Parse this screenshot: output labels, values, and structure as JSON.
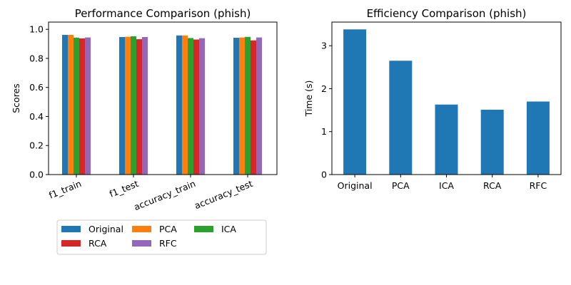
{
  "chart_data": [
    {
      "type": "bar",
      "title": "Performance Comparison (phish)",
      "xlabel": "",
      "ylabel": "Scores",
      "ylim": [
        0,
        1.0
      ],
      "yticks": [
        "0.0",
        "0.2",
        "0.4",
        "0.6",
        "0.8",
        "1.0"
      ],
      "yticks_values": [
        0,
        0.2,
        0.4,
        0.6,
        0.8,
        1.0
      ],
      "categories": [
        "f1_train",
        "f1_test",
        "accuracy_train",
        "accuracy_test"
      ],
      "series": [
        {
          "name": "Original",
          "color": "#1f77b4",
          "values": [
            0.962,
            0.947,
            0.958,
            0.942
          ]
        },
        {
          "name": "PCA",
          "color": "#ff7f0e",
          "values": [
            0.962,
            0.949,
            0.958,
            0.944
          ]
        },
        {
          "name": "ICA",
          "color": "#2ca02c",
          "values": [
            0.943,
            0.952,
            0.94,
            0.948
          ]
        },
        {
          "name": "RCA",
          "color": "#d62728",
          "values": [
            0.938,
            0.932,
            0.93,
            0.924
          ]
        },
        {
          "name": "RFC",
          "color": "#9467bd",
          "values": [
            0.944,
            0.947,
            0.939,
            0.944
          ]
        }
      ],
      "legend": {
        "placement": "below",
        "columns": 3
      },
      "grid": false
    },
    {
      "type": "bar",
      "title": "Efficiency Comparison (phish)",
      "xlabel": "",
      "ylabel": "Time (s)",
      "ylim": [
        0,
        3.55
      ],
      "yticks": [
        "0",
        "1",
        "2",
        "3"
      ],
      "yticks_values": [
        0,
        1,
        2,
        3
      ],
      "categories": [
        "Original",
        "PCA",
        "ICA",
        "RCA",
        "RFC"
      ],
      "values": [
        3.38,
        2.65,
        1.63,
        1.51,
        1.7
      ],
      "color": "#1f77b4",
      "grid": false
    }
  ]
}
